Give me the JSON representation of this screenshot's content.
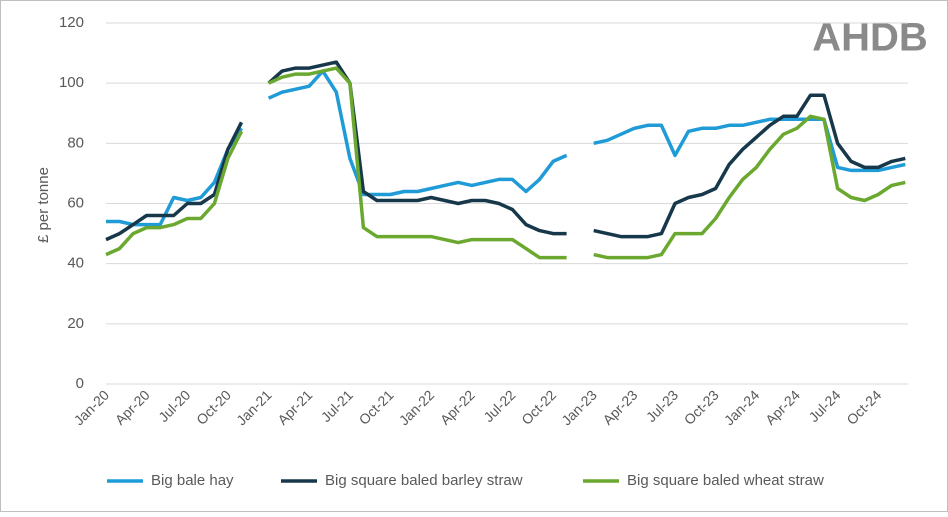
{
  "chart_data": {
    "type": "line",
    "logo": "AHDB",
    "y_label": "£ per tonne",
    "categories": [
      "Jan-20",
      null,
      null,
      "Apr-20",
      null,
      null,
      "Jul-20",
      null,
      null,
      "Oct-20",
      null,
      null,
      "Jan-21",
      null,
      null,
      "Apr-21",
      null,
      null,
      "Jul-21",
      null,
      null,
      "Oct-21",
      null,
      null,
      "Jan-22",
      null,
      null,
      "Apr-22",
      null,
      null,
      "Jul-22",
      null,
      null,
      "Oct-22",
      null,
      null,
      "Jan-23",
      null,
      null,
      "Apr-23",
      null,
      null,
      "Jul-23",
      null,
      null,
      "Oct-23",
      null,
      null,
      "Jan-24",
      null,
      null,
      "Apr-24",
      null,
      null,
      "Jul-24",
      null,
      null,
      "Oct-24",
      null,
      null
    ],
    "series": [
      {
        "name": "Big bale hay",
        "color": "#1f9bd7",
        "values": [
          54,
          54,
          53,
          53,
          53,
          62,
          61,
          62,
          67,
          78,
          85,
          null,
          95,
          97,
          98,
          99,
          104,
          97,
          75,
          63,
          63,
          63,
          64,
          64,
          65,
          66,
          67,
          66,
          67,
          68,
          68,
          64,
          68,
          74,
          76,
          null,
          80,
          81,
          83,
          85,
          86,
          86,
          76,
          84,
          85,
          85,
          86,
          86,
          87,
          88,
          88,
          88,
          88,
          88,
          72,
          71,
          71,
          71,
          72,
          73
        ]
      },
      {
        "name": "Big square baled barley straw",
        "color": "#17384a",
        "values": [
          48,
          50,
          53,
          56,
          56,
          56,
          60,
          60,
          63,
          78,
          87,
          null,
          100,
          104,
          105,
          105,
          106,
          107,
          100,
          64,
          61,
          61,
          61,
          61,
          62,
          61,
          60,
          61,
          61,
          60,
          58,
          53,
          51,
          50,
          50,
          null,
          51,
          50,
          49,
          49,
          49,
          50,
          60,
          62,
          63,
          65,
          73,
          78,
          82,
          86,
          89,
          89,
          96,
          96,
          80,
          74,
          72,
          72,
          74,
          75
        ]
      },
      {
        "name": "Big square baled wheat straw",
        "color": "#6aa82f",
        "values": [
          43,
          45,
          50,
          52,
          52,
          53,
          55,
          55,
          60,
          75,
          84,
          null,
          100,
          102,
          103,
          103,
          104,
          105,
          100,
          52,
          49,
          49,
          49,
          49,
          49,
          48,
          47,
          48,
          48,
          48,
          48,
          45,
          42,
          42,
          42,
          null,
          43,
          42,
          42,
          42,
          42,
          43,
          50,
          50,
          50,
          55,
          62,
          68,
          72,
          78,
          83,
          85,
          89,
          88,
          65,
          62,
          61,
          63,
          66,
          67
        ]
      }
    ],
    "ylim": [
      0,
      120
    ],
    "yticks": [
      0,
      20,
      40,
      60,
      80,
      100,
      120
    ],
    "grid": true,
    "legend": "bottom"
  }
}
